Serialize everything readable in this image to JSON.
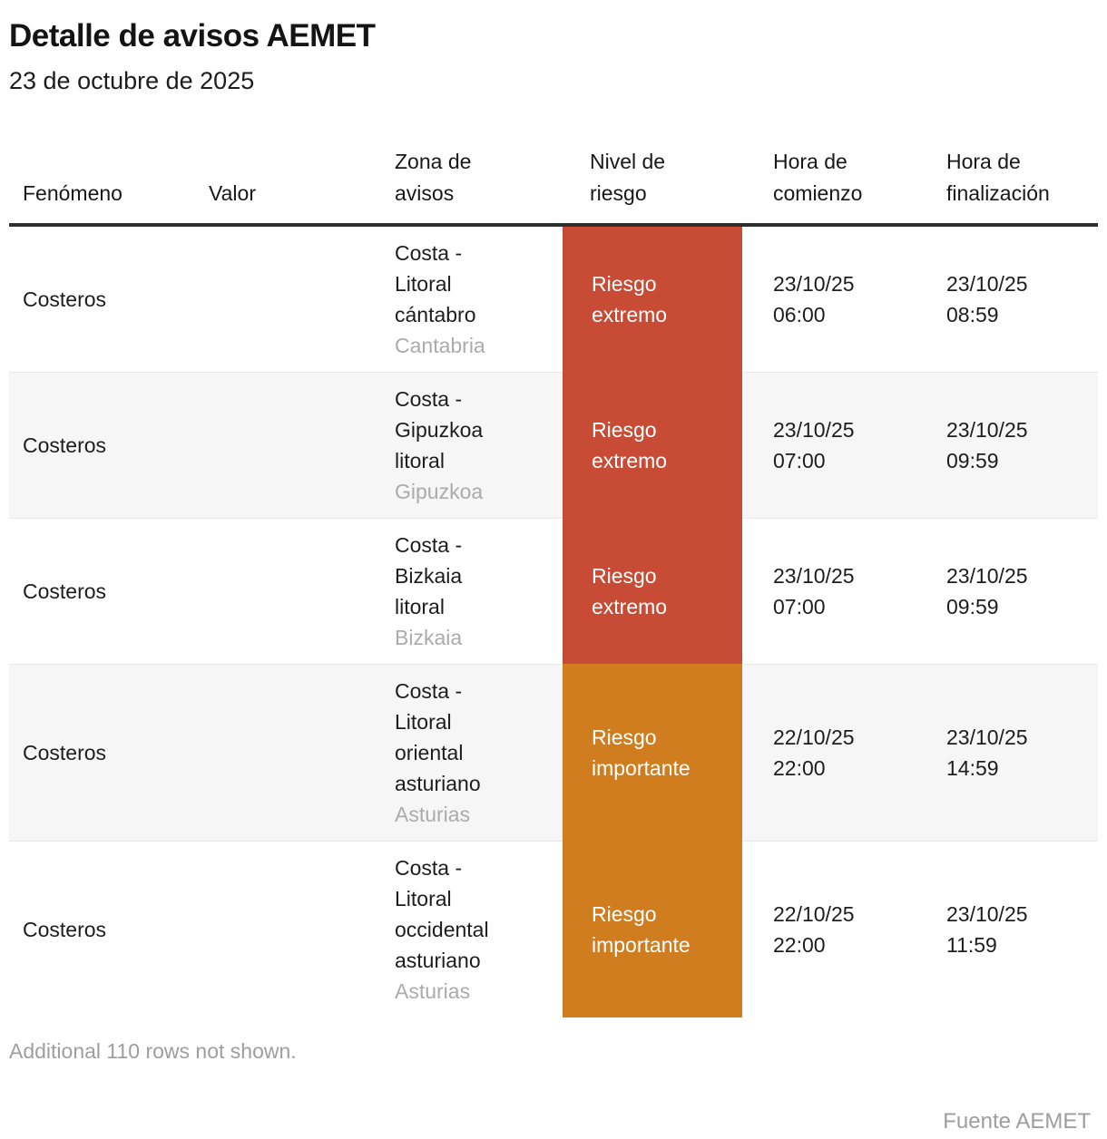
{
  "header": {
    "title": "Detalle de avisos AEMET",
    "subtitle": "23 de octubre de 2025"
  },
  "colors": {
    "risk_extreme": "#C74B35",
    "risk_important": "#D07D20",
    "stripe": "#F6F6F6",
    "rule": "#2E2E2E",
    "divider": "#E8E8E8",
    "muted_text": "#ABABAB",
    "footnote_text": "#9E9E9E",
    "band_text": "#FFFFFF"
  },
  "chart_data": {
    "type": "table",
    "title": "Detalle de avisos AEMET",
    "subtitle": "23 de octubre de 2025",
    "columns": [
      {
        "label": "Fenómeno",
        "lines": [
          "Fenómeno"
        ]
      },
      {
        "label": "Valor",
        "lines": [
          "Valor"
        ]
      },
      {
        "label": "Zona de avisos",
        "lines": [
          "Zona de",
          "avisos"
        ]
      },
      {
        "label": "Nivel de riesgo",
        "lines": [
          "Nivel de",
          "riesgo"
        ]
      },
      {
        "label": "Hora de comienzo",
        "lines": [
          "Hora de",
          "comienzo"
        ]
      },
      {
        "label": "Hora de finalización",
        "lines": [
          "Hora de",
          "finalización"
        ]
      }
    ],
    "rows": [
      {
        "fenomeno": "Costeros",
        "valor": "",
        "zona": "Costa - Litoral cántabro",
        "zona_lines": [
          "Costa -",
          "Litoral",
          "cántabro"
        ],
        "region": "Cantabria",
        "risk": "Riesgo extremo",
        "risk_level": "extremo",
        "start_lines": [
          "23/10/25",
          "06:00"
        ],
        "end_lines": [
          "23/10/25",
          "08:59"
        ]
      },
      {
        "fenomeno": "Costeros",
        "valor": "",
        "zona": "Costa - Gipuzkoa litoral",
        "zona_lines": [
          "Costa -",
          "Gipuzkoa",
          "litoral"
        ],
        "region": "Gipuzkoa",
        "risk": "Riesgo extremo",
        "risk_level": "extremo",
        "start_lines": [
          "23/10/25",
          "07:00"
        ],
        "end_lines": [
          "23/10/25",
          "09:59"
        ]
      },
      {
        "fenomeno": "Costeros",
        "valor": "",
        "zona": "Costa - Bizkaia litoral",
        "zona_lines": [
          "Costa -",
          "Bizkaia",
          "litoral"
        ],
        "region": "Bizkaia",
        "risk": "Riesgo extremo",
        "risk_level": "extremo",
        "start_lines": [
          "23/10/25",
          "07:00"
        ],
        "end_lines": [
          "23/10/25",
          "09:59"
        ]
      },
      {
        "fenomeno": "Costeros",
        "valor": "",
        "zona": "Costa - Litoral oriental asturiano",
        "zona_lines": [
          "Costa -",
          "Litoral",
          "oriental",
          "asturiano"
        ],
        "region": "Asturias",
        "risk": "Riesgo importante",
        "risk_level": "importante",
        "start_lines": [
          "22/10/25",
          "22:00"
        ],
        "end_lines": [
          "23/10/25",
          "14:59"
        ]
      },
      {
        "fenomeno": "Costeros",
        "valor": "",
        "zona": "Costa - Litoral occidental asturiano",
        "zona_lines": [
          "Costa -",
          "Litoral",
          "occidental",
          "asturiano"
        ],
        "region": "Asturias",
        "risk": "Riesgo importante",
        "risk_level": "importante",
        "start_lines": [
          "22/10/25",
          "22:00"
        ],
        "end_lines": [
          "23/10/25",
          "11:59"
        ]
      }
    ],
    "note": "Additional 110 rows not shown.",
    "source": "Fuente AEMET"
  }
}
